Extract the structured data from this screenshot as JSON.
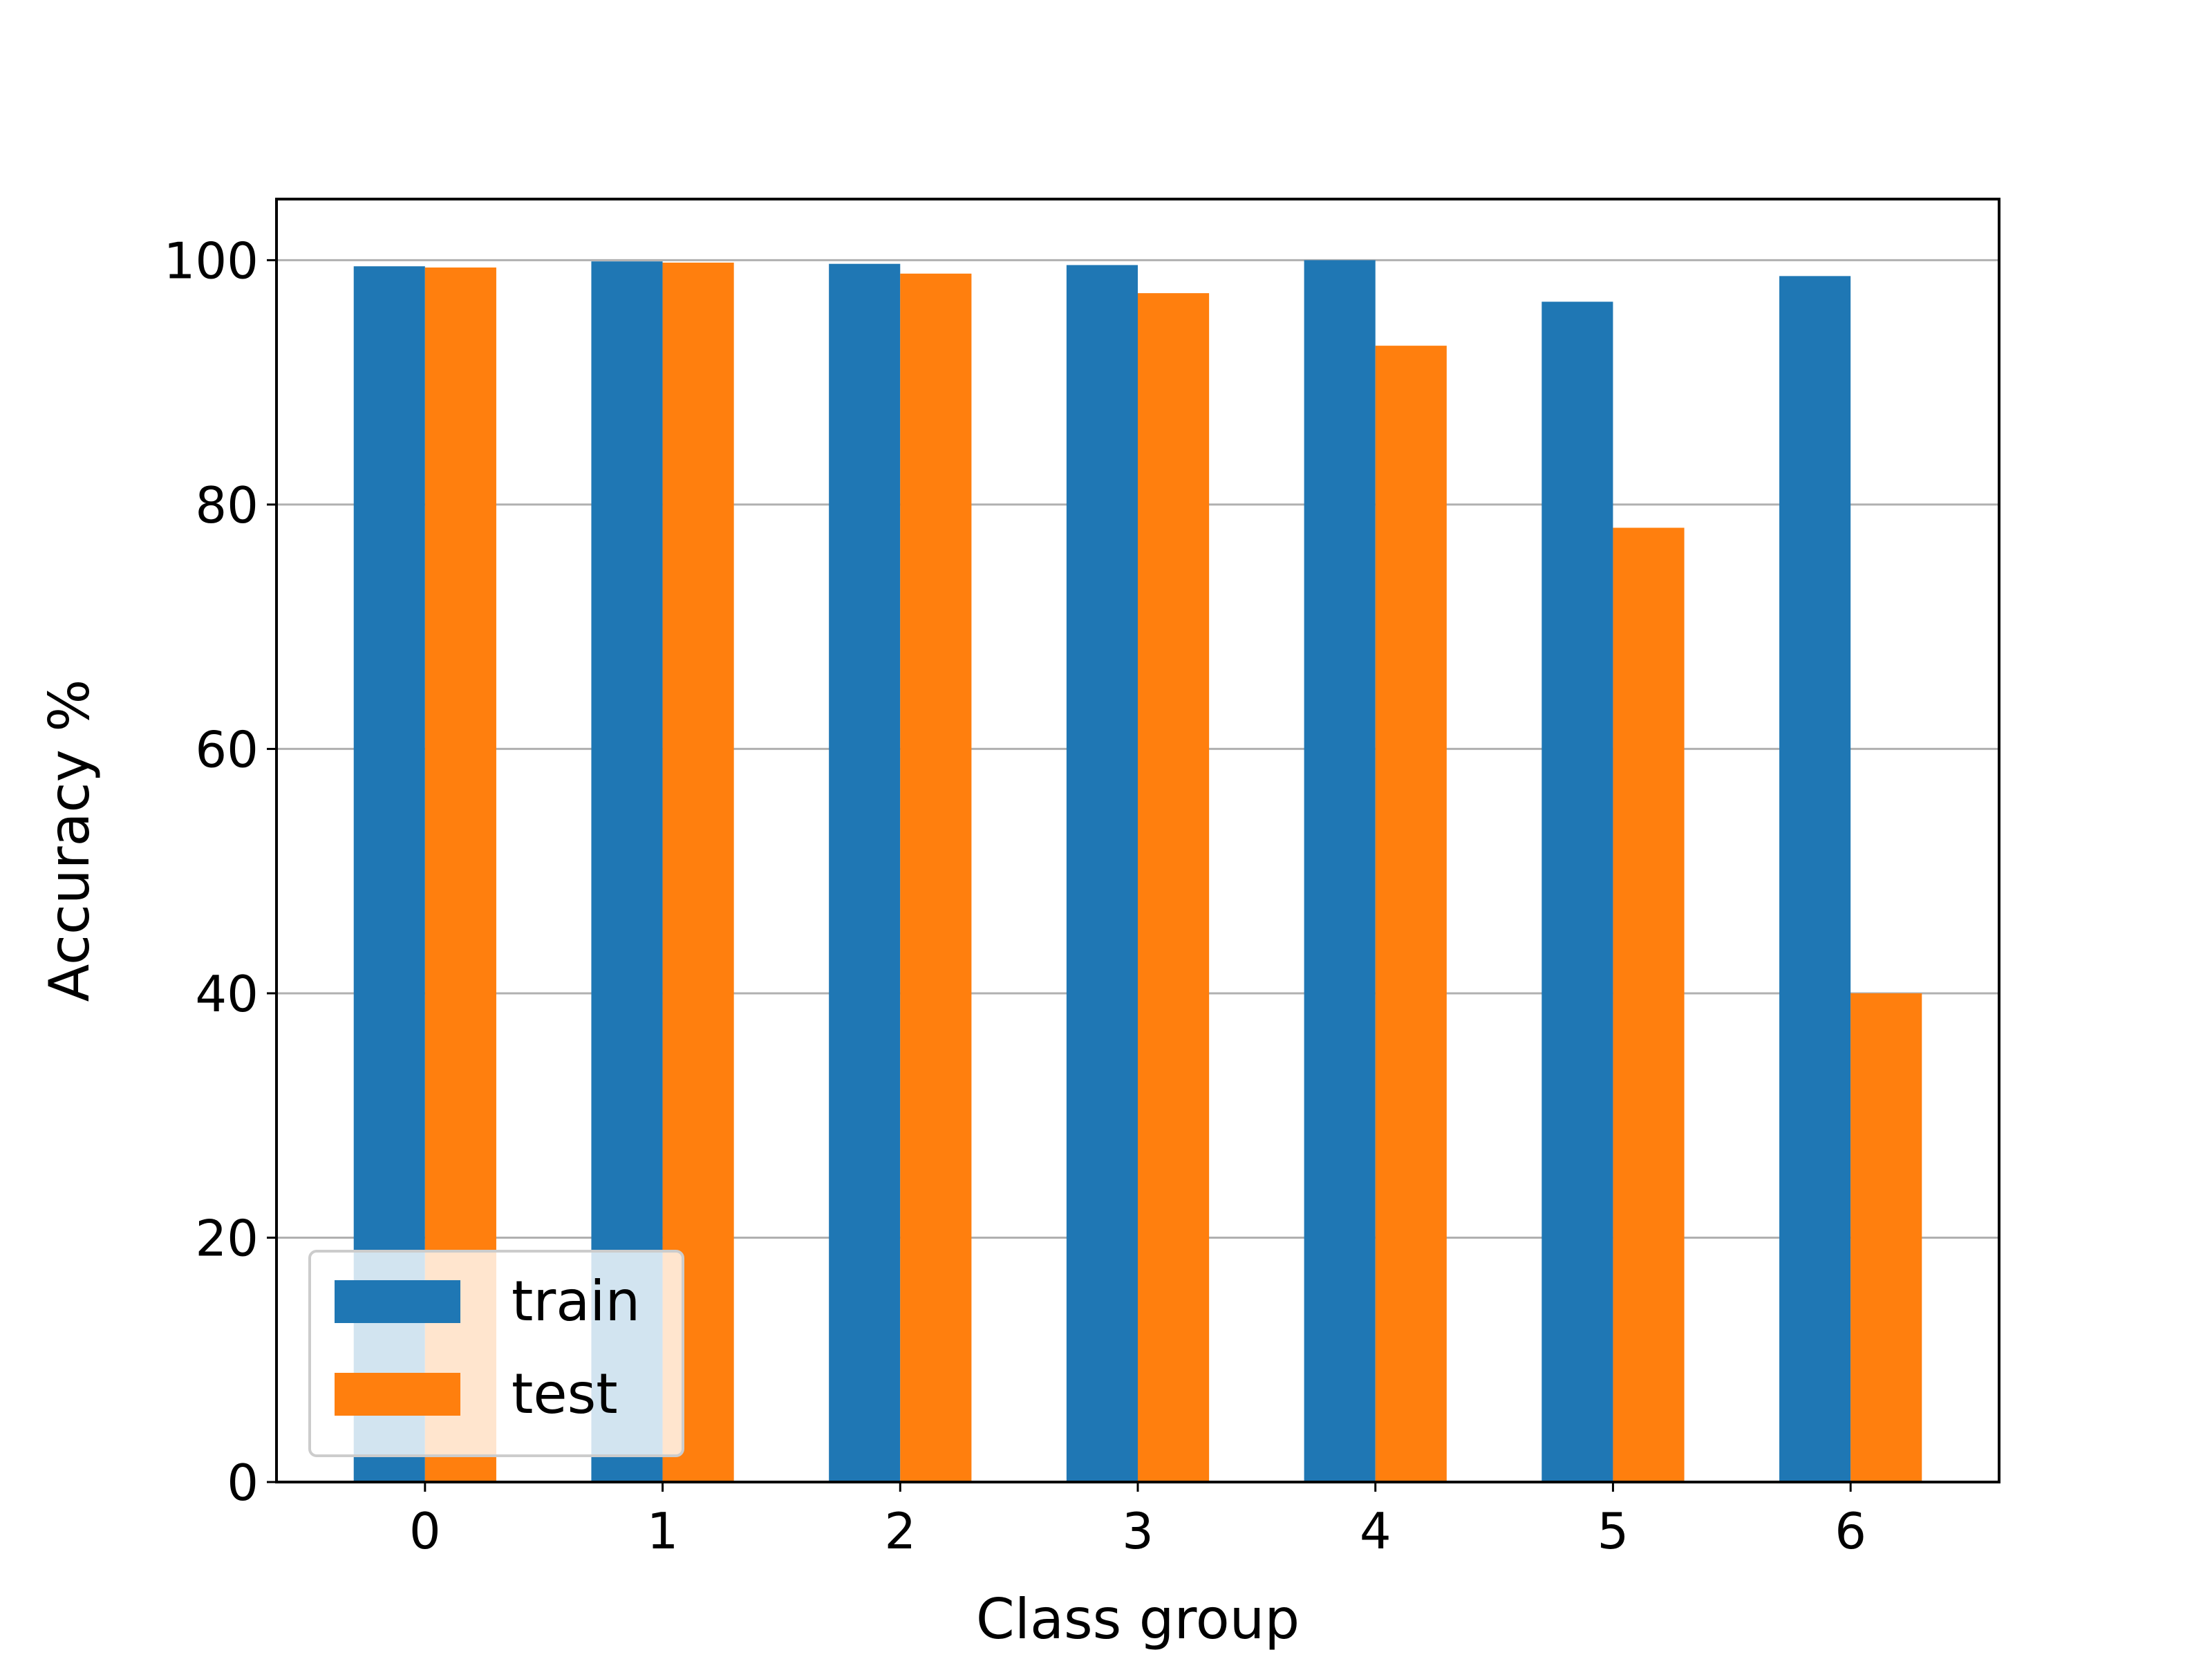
{
  "chart_data": {
    "type": "bar",
    "categories": [
      "0",
      "1",
      "2",
      "3",
      "4",
      "5",
      "6"
    ],
    "series": [
      {
        "name": "train",
        "color": "#1f77b4",
        "values": [
          99.5,
          99.9,
          99.7,
          99.6,
          100.0,
          96.6,
          98.7
        ]
      },
      {
        "name": "test",
        "color": "#ff7f0e",
        "values": [
          99.4,
          99.8,
          98.9,
          97.3,
          93.0,
          78.1,
          40.0
        ]
      }
    ],
    "title": "",
    "xlabel": "Class group",
    "ylabel": "Accuracy %",
    "ylim": [
      0,
      105
    ],
    "yticks": [
      "0",
      "20",
      "40",
      "60",
      "80",
      "100"
    ],
    "grid": "y",
    "legend_position": "bottom-left"
  }
}
